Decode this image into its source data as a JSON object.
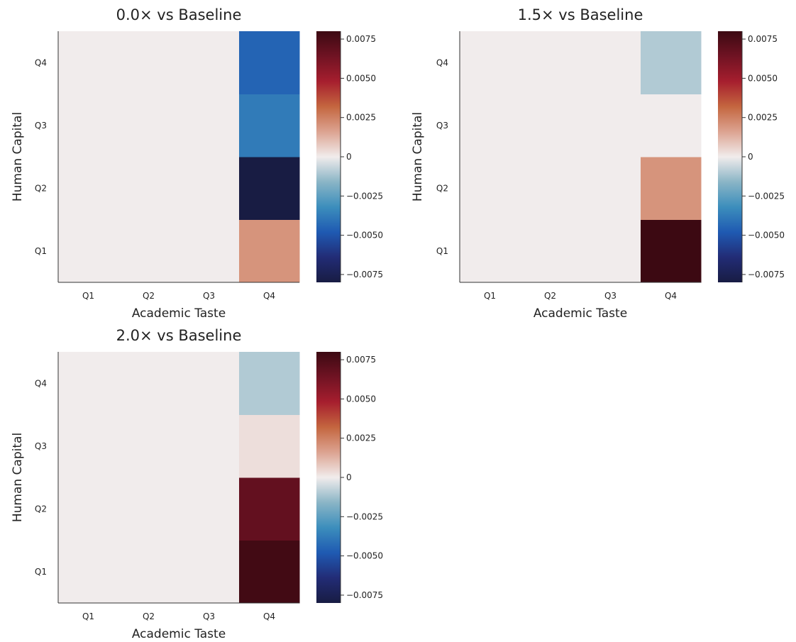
{
  "figure": {
    "panels_order": [
      "top-left",
      "top-right",
      "bottom-left"
    ]
  },
  "chart_data": [
    {
      "type": "heatmap",
      "title": "0.0× vs Baseline",
      "xlabel": "Academic Taste",
      "ylabel": "Human Capital",
      "x_categories": [
        "Q1",
        "Q2",
        "Q3",
        "Q4"
      ],
      "y_categories": [
        "Q1",
        "Q2",
        "Q3",
        "Q4"
      ],
      "z": [
        [
          0,
          0,
          0,
          0.002
        ],
        [
          0,
          0,
          0,
          -0.008
        ],
        [
          0,
          0,
          0,
          -0.0038
        ],
        [
          0,
          0,
          0,
          -0.0045
        ]
      ],
      "z_range": [
        -0.008,
        0.008
      ],
      "colorbar_ticks": [
        0.0075,
        0.005,
        0.0025,
        0,
        -0.0025,
        -0.005,
        -0.0075
      ],
      "colorbar_tick_labels": [
        "0.0075",
        "0.0050",
        "0.0025",
        "0",
        "−0.0025",
        "−0.0050",
        "−0.0075"
      ],
      "colormap": "balance (blue-white-red)",
      "grid": false
    },
    {
      "type": "heatmap",
      "title": "1.5× vs Baseline",
      "xlabel": "Academic Taste",
      "ylabel": "Human Capital",
      "x_categories": [
        "Q1",
        "Q2",
        "Q3",
        "Q4"
      ],
      "y_categories": [
        "Q1",
        "Q2",
        "Q3",
        "Q4"
      ],
      "z": [
        [
          0,
          0,
          0,
          0.008
        ],
        [
          0,
          0,
          0,
          0.002
        ],
        [
          0,
          0,
          0,
          0
        ],
        [
          0,
          0,
          0,
          -0.001
        ]
      ],
      "z_range": [
        -0.008,
        0.008
      ],
      "colorbar_ticks": [
        0.0075,
        0.005,
        0.0025,
        0,
        -0.0025,
        -0.005,
        -0.0075
      ],
      "colorbar_tick_labels": [
        "0.0075",
        "0.0050",
        "0.0025",
        "0",
        "−0.0025",
        "−0.0050",
        "−0.0075"
      ],
      "colormap": "balance (blue-white-red)",
      "grid": false
    },
    {
      "type": "heatmap",
      "title": "2.0× vs Baseline",
      "xlabel": "Academic Taste",
      "ylabel": "Human Capital",
      "x_categories": [
        "Q1",
        "Q2",
        "Q3",
        "Q4"
      ],
      "y_categories": [
        "Q1",
        "Q2",
        "Q3",
        "Q4"
      ],
      "z": [
        [
          0,
          0,
          0,
          0.0078
        ],
        [
          0,
          0,
          0,
          0.0068
        ],
        [
          0,
          0,
          0,
          0.0003
        ],
        [
          0,
          0,
          0,
          -0.001
        ]
      ],
      "z_range": [
        -0.008,
        0.008
      ],
      "colorbar_ticks": [
        0.0075,
        0.005,
        0.0025,
        0,
        -0.0025,
        -0.005,
        -0.0075
      ],
      "colorbar_tick_labels": [
        "0.0075",
        "0.0050",
        "0.0025",
        "0",
        "−0.0025",
        "−0.0050",
        "−0.0075"
      ],
      "colormap": "balance (blue-white-red)",
      "grid": false
    }
  ]
}
